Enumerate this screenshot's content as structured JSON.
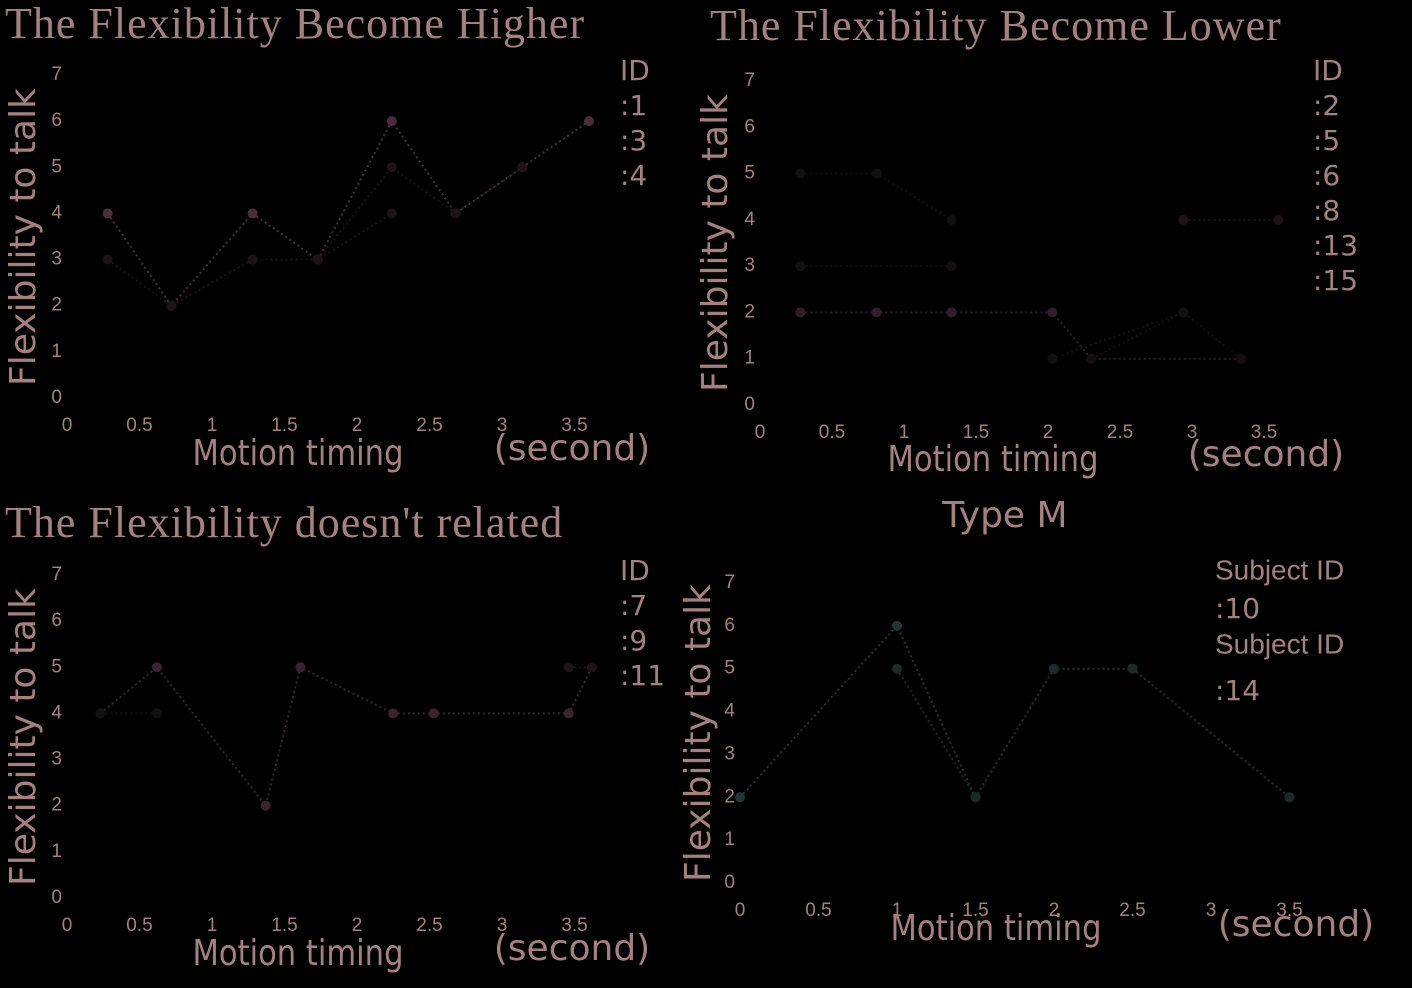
{
  "chart_data": [
    {
      "type": "line",
      "title": "The Flexibility Become Higher",
      "x_label": "Motion timing",
      "x_unit_label": "(second)",
      "y_label": "Flexibility to talk",
      "legend_title": "ID",
      "xlim": [
        0,
        4
      ],
      "ylim": [
        0,
        7
      ],
      "xticks": [
        0,
        0.5,
        1,
        1.5,
        2,
        2.5,
        3,
        3.5
      ],
      "yticks": [
        0,
        1,
        2,
        3,
        4,
        5,
        6,
        7
      ],
      "series": [
        {
          "name": ":1",
          "color": "#4a2e3c",
          "x": [
            0.28,
            0.72,
            1.28,
            1.73,
            2.24,
            2.68,
            3.14,
            3.6
          ],
          "values": [
            4,
            2,
            4,
            3,
            6,
            4,
            5,
            6
          ]
        },
        {
          "name": ":3",
          "color": "#1c1418",
          "x": [
            0.28,
            0.72,
            1.28,
            1.73,
            2.24
          ],
          "values": [
            3,
            2,
            3,
            3,
            4
          ]
        },
        {
          "name": ":4",
          "color": "#1c1418",
          "x": [
            1.73,
            2.24,
            2.68,
            3.14
          ],
          "values": [
            3,
            5,
            4,
            5
          ]
        }
      ]
    },
    {
      "type": "line",
      "title": "The Flexibility Become Lower",
      "x_label": "Motion timing",
      "x_unit_label": "(second)",
      "y_label": "Flexibility to talk",
      "legend_title": "ID",
      "xlim": [
        0,
        4
      ],
      "ylim": [
        0,
        7
      ],
      "xticks": [
        0,
        0.5,
        1,
        1.5,
        2,
        2.5,
        3,
        3.5
      ],
      "yticks": [
        0,
        1,
        2,
        3,
        4,
        5,
        6,
        7
      ],
      "series": [
        {
          "name": ":2",
          "color": "#2e1f28",
          "x": [
            0.28,
            0.81,
            1.33,
            2.03,
            2.3,
            3.34
          ],
          "values": [
            2,
            2,
            2,
            2,
            1,
            1
          ]
        },
        {
          "name": ":5",
          "color": "#141012",
          "x": [
            0.28,
            0.81,
            1.33
          ],
          "values": [
            5,
            5,
            4
          ]
        },
        {
          "name": ":6",
          "color": "#141012",
          "x": [
            2.03,
            2.94,
            3.34
          ],
          "values": [
            1,
            2,
            1
          ]
        },
        {
          "name": ":8",
          "color": "#1c1418",
          "x": [
            2.94,
            3.6
          ],
          "values": [
            4,
            4
          ]
        },
        {
          "name": ":13",
          "color": "#141012",
          "x": [
            0.28,
            1.33
          ],
          "values": [
            3,
            3
          ]
        },
        {
          "name": ":15",
          "color": "#141012",
          "x": [
            2.3,
            2.94
          ],
          "values": [
            1,
            2
          ]
        }
      ]
    },
    {
      "type": "line",
      "title": "The Flexibility doesn't related",
      "x_label": "Motion timing",
      "x_unit_label": "(second)",
      "y_label": "Flexibility to talk",
      "legend_title": "ID",
      "xlim": [
        0,
        4
      ],
      "ylim": [
        0,
        7
      ],
      "xticks": [
        0,
        0.5,
        1,
        1.5,
        2,
        2.5,
        3,
        3.5
      ],
      "yticks": [
        0,
        1,
        2,
        3,
        4,
        5,
        6,
        7
      ],
      "series": [
        {
          "name": ":7",
          "color": "#3a2430",
          "x": [
            0.23,
            0.62,
            1.37,
            1.61,
            2.25,
            2.53,
            3.46,
            3.62
          ],
          "values": [
            4,
            5,
            2,
            5,
            4,
            4,
            4,
            5
          ]
        },
        {
          "name": ":9",
          "color": "#141012",
          "x": [
            0.23,
            0.62
          ],
          "values": [
            4,
            4
          ]
        },
        {
          "name": ":11",
          "color": "#1c1418",
          "x": [
            3.46,
            3.62
          ],
          "values": [
            5,
            5
          ]
        }
      ]
    },
    {
      "type": "line",
      "title": "Type M",
      "x_label": "Motion timing",
      "x_unit_label": "(second)",
      "y_label": "Flexibility to talk",
      "legend_title": "Subject ID",
      "xlim": [
        0,
        4
      ],
      "ylim": [
        0,
        7
      ],
      "xticks": [
        0,
        0.5,
        1,
        1.5,
        2,
        2.5,
        3,
        3.5
      ],
      "yticks": [
        0,
        1,
        2,
        3,
        4,
        5,
        6,
        7
      ],
      "series": [
        {
          "name": ":10",
          "color": "#1f3836",
          "x": [
            0,
            1,
            1.5,
            2,
            2.5,
            3.5
          ],
          "values": [
            2,
            6,
            2,
            5,
            5,
            2
          ]
        },
        {
          "name": ":14",
          "color": "#1a2c2a",
          "x": [
            1,
            1.5,
            2,
            2.5,
            3.5
          ],
          "values": [
            5,
            2,
            5,
            5,
            2
          ]
        }
      ]
    }
  ]
}
